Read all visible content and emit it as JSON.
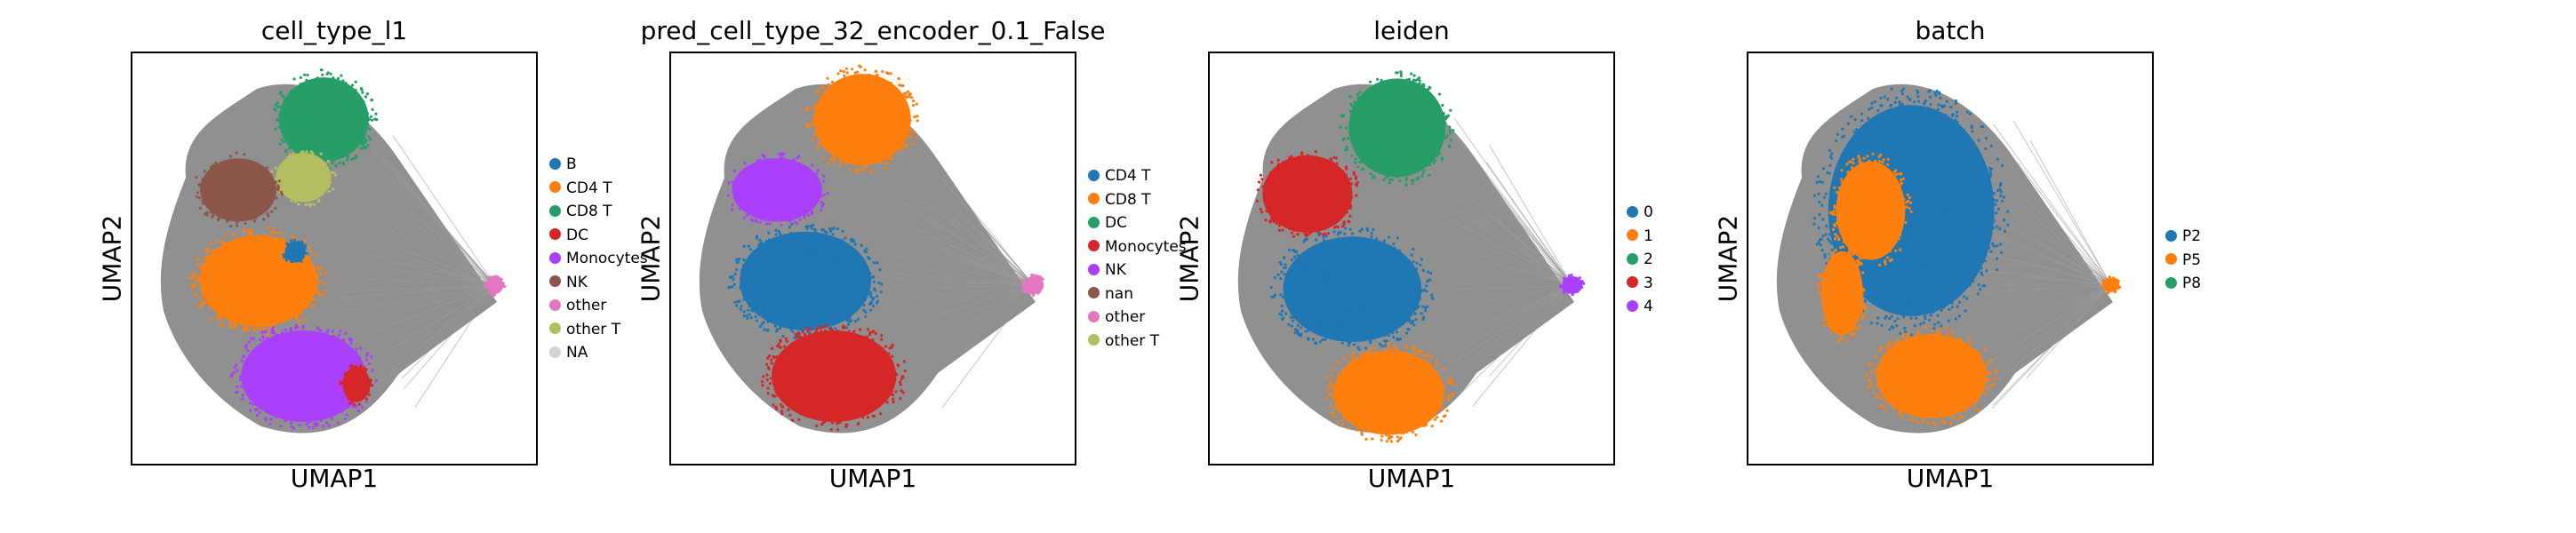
{
  "chart_data": [
    {
      "type": "scatter",
      "title": "cell_type_l1",
      "xlabel": "UMAP1",
      "ylabel": "UMAP2",
      "legend": "right",
      "grid": false,
      "categories": [
        {
          "name": "B",
          "color": "#1f77b4"
        },
        {
          "name": "CD4 T",
          "color": "#ff7f0e"
        },
        {
          "name": "CD8 T",
          "color": "#279e68"
        },
        {
          "name": "DC",
          "color": "#d62728"
        },
        {
          "name": "Monocytes",
          "color": "#aa40fc"
        },
        {
          "name": "NK",
          "color": "#8c564b"
        },
        {
          "name": "other",
          "color": "#e377c2"
        },
        {
          "name": "other T",
          "color": "#b5bd61"
        },
        {
          "name": "NA",
          "color": "#d3d3d3"
        }
      ],
      "clusters": [
        {
          "category": "CD8 T",
          "cx": 0.47,
          "cy": 0.84,
          "rx": 0.13,
          "ry": 0.12
        },
        {
          "category": "other T",
          "cx": 0.42,
          "cy": 0.7,
          "rx": 0.08,
          "ry": 0.07
        },
        {
          "category": "NK",
          "cx": 0.26,
          "cy": 0.67,
          "rx": 0.11,
          "ry": 0.09
        },
        {
          "category": "CD4 T",
          "cx": 0.31,
          "cy": 0.45,
          "rx": 0.17,
          "ry": 0.13
        },
        {
          "category": "Monocytes",
          "cx": 0.42,
          "cy": 0.22,
          "rx": 0.18,
          "ry": 0.13
        },
        {
          "category": "DC",
          "cx": 0.55,
          "cy": 0.2,
          "rx": 0.04,
          "ry": 0.05
        },
        {
          "category": "B",
          "cx": 0.4,
          "cy": 0.52,
          "rx": 0.03,
          "ry": 0.03
        },
        {
          "category": "other",
          "cx": 0.89,
          "cy": 0.44,
          "rx": 0.025,
          "ry": 0.025
        }
      ]
    },
    {
      "type": "scatter",
      "title": "pred_cell_type_32_encoder_0.1_False",
      "xlabel": "UMAP1",
      "ylabel": "UMAP2",
      "legend": "right",
      "grid": false,
      "categories": [
        {
          "name": "CD4 T",
          "color": "#1f77b4"
        },
        {
          "name": "CD8 T",
          "color": "#ff7f0e"
        },
        {
          "name": "DC",
          "color": "#279e68"
        },
        {
          "name": "Monocytes",
          "color": "#d62728"
        },
        {
          "name": "NK",
          "color": "#aa40fc"
        },
        {
          "name": "nan",
          "color": "#8c564b"
        },
        {
          "name": "other",
          "color": "#e377c2"
        },
        {
          "name": "other T",
          "color": "#b5bd61"
        }
      ],
      "clusters": [
        {
          "category": "CD8 T",
          "cx": 0.47,
          "cy": 0.84,
          "rx": 0.14,
          "ry": 0.13
        },
        {
          "category": "NK",
          "cx": 0.26,
          "cy": 0.67,
          "rx": 0.13,
          "ry": 0.09
        },
        {
          "category": "CD4 T",
          "cx": 0.33,
          "cy": 0.45,
          "rx": 0.19,
          "ry": 0.14
        },
        {
          "category": "Monocytes",
          "cx": 0.4,
          "cy": 0.22,
          "rx": 0.18,
          "ry": 0.13
        },
        {
          "category": "other",
          "cx": 0.89,
          "cy": 0.44,
          "rx": 0.03,
          "ry": 0.025
        }
      ]
    },
    {
      "type": "scatter",
      "title": "leiden",
      "xlabel": "UMAP1",
      "ylabel": "UMAP2",
      "legend": "right",
      "grid": false,
      "categories": [
        {
          "name": "0",
          "color": "#1f77b4"
        },
        {
          "name": "1",
          "color": "#ff7f0e"
        },
        {
          "name": "2",
          "color": "#279e68"
        },
        {
          "name": "3",
          "color": "#d62728"
        },
        {
          "name": "4",
          "color": "#aa40fc"
        }
      ],
      "clusters": [
        {
          "category": "2",
          "cx": 0.46,
          "cy": 0.82,
          "rx": 0.14,
          "ry": 0.14
        },
        {
          "category": "3",
          "cx": 0.24,
          "cy": 0.66,
          "rx": 0.13,
          "ry": 0.11
        },
        {
          "category": "0",
          "cx": 0.35,
          "cy": 0.43,
          "rx": 0.2,
          "ry": 0.15
        },
        {
          "category": "1",
          "cx": 0.44,
          "cy": 0.18,
          "rx": 0.16,
          "ry": 0.12
        },
        {
          "category": "4",
          "cx": 0.89,
          "cy": 0.44,
          "rx": 0.03,
          "ry": 0.025
        }
      ]
    },
    {
      "type": "scatter",
      "title": "batch",
      "xlabel": "UMAP1",
      "ylabel": "UMAP2",
      "legend": "right",
      "grid": false,
      "categories": [
        {
          "name": "P2",
          "color": "#1f77b4"
        },
        {
          "name": "P5",
          "color": "#ff7f0e"
        },
        {
          "name": "P8",
          "color": "#279e68"
        }
      ],
      "clusters": [
        {
          "category": "P2",
          "cx": 0.4,
          "cy": 0.62,
          "rx": 0.24,
          "ry": 0.3
        },
        {
          "category": "P5",
          "cx": 0.3,
          "cy": 0.62,
          "rx": 0.1,
          "ry": 0.14
        },
        {
          "category": "P5",
          "cx": 0.45,
          "cy": 0.22,
          "rx": 0.16,
          "ry": 0.12
        },
        {
          "category": "P5",
          "cx": 0.23,
          "cy": 0.42,
          "rx": 0.06,
          "ry": 0.12
        },
        {
          "category": "P5",
          "cx": 0.89,
          "cy": 0.44,
          "rx": 0.025,
          "ry": 0.02
        }
      ]
    }
  ]
}
